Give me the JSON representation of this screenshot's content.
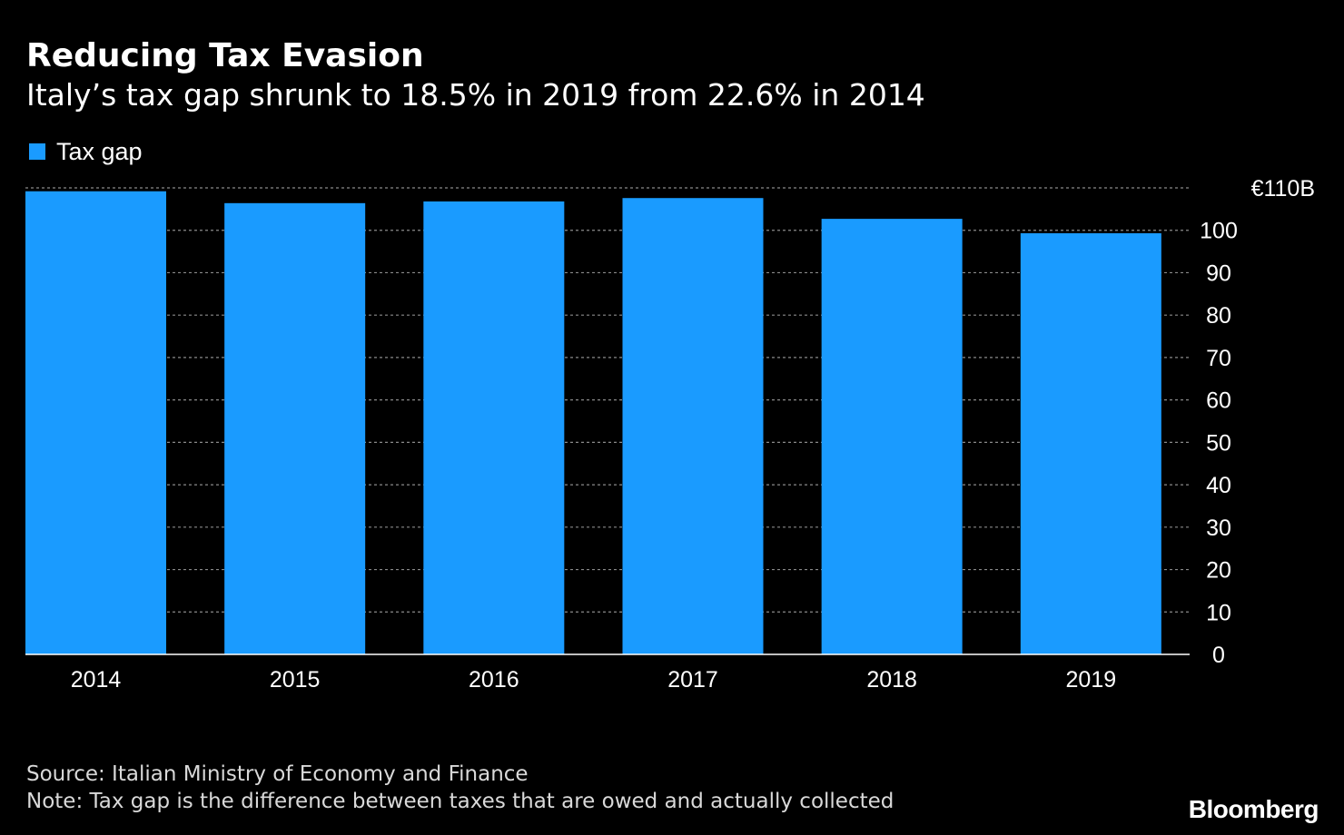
{
  "header": {
    "title": "Reducing Tax Evasion",
    "subtitle": "Italy’s tax gap shrunk to 18.5% in 2019 from 22.6% in 2014"
  },
  "legend": {
    "label": "Tax gap"
  },
  "colors": {
    "background": "#000000",
    "bar": "#1a9bff",
    "grid": "#8a8a8a",
    "axis": "#ffffff",
    "text": "#ffffff",
    "footer_text": "#d9d9d9"
  },
  "footer": {
    "source": "Source: Italian Ministry of Economy and Finance",
    "note": "Note: Tax gap is the difference between taxes that are owed and actually collected",
    "brand": "Bloomberg"
  },
  "chart_data": {
    "type": "bar",
    "categories": [
      "2014",
      "2015",
      "2016",
      "2017",
      "2018",
      "2019"
    ],
    "series": [
      {
        "name": "Tax gap",
        "values": [
          109.2,
          106.4,
          106.8,
          107.6,
          102.7,
          99.3
        ]
      }
    ],
    "ylim": [
      0,
      110
    ],
    "yticks": [
      0,
      10,
      20,
      30,
      40,
      50,
      60,
      70,
      80,
      90,
      100,
      110
    ],
    "ytick_labels": [
      "0",
      "10",
      "20",
      "30",
      "40",
      "50",
      "60",
      "70",
      "80",
      "90",
      "100",
      "€110B"
    ],
    "y_axis_position": "right",
    "grid": true,
    "legend_position": "top-left"
  }
}
